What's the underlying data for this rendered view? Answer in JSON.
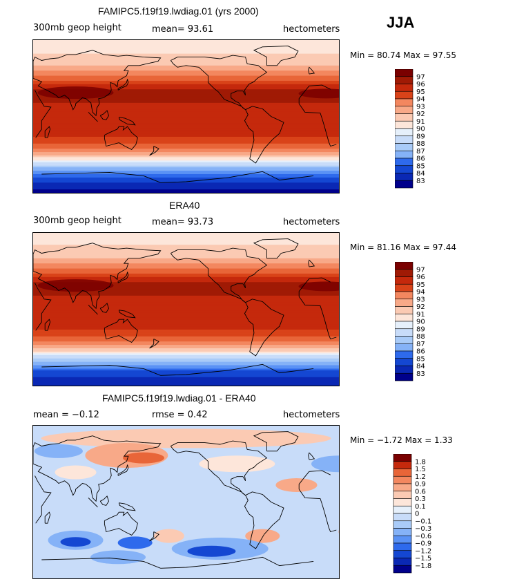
{
  "season": "JJA",
  "colors": {
    "warm_scale": [
      "#00008b",
      "#0a28b4",
      "#1447d2",
      "#2e6aec",
      "#5a92f5",
      "#85b2f7",
      "#a9cbf8",
      "#c8dcf9",
      "#e6f0fb",
      "#fde6da",
      "#fbcab3",
      "#f8a988",
      "#f3875f",
      "#e86538",
      "#d94319",
      "#c5290c",
      "#a01a05",
      "#7a0000"
    ],
    "diff_scale": [
      "#00008b",
      "#0a28b4",
      "#1447d2",
      "#2e6aec",
      "#5a92f5",
      "#85b2f7",
      "#a9cbf8",
      "#c8dcf9",
      "#e6f0fb",
      "#fde6da",
      "#fbcab3",
      "#f8a988",
      "#f3875f",
      "#e86538",
      "#c5290c",
      "#7a0000"
    ],
    "coast": "#000000"
  },
  "panels": [
    {
      "title": "FAMIPC5.f19f19.lwdiag.01 (yrs 2000)",
      "left_label": "300mb  geop height",
      "center_label": "mean=   93.61",
      "right_label": "hectometers",
      "minmax": "Min =   80.74  Max =   97.55"
    },
    {
      "title": "ERA40",
      "left_label": "300mb  geop height",
      "center_label": "mean=   93.73",
      "right_label": "hectometers",
      "minmax": "Min =   81.16  Max =   97.44"
    },
    {
      "title": "FAMIPC5.f19f19.lwdiag.01 - ERA40",
      "left_label": "mean =   −0.12",
      "center_label": "rmse =    0.42",
      "right_label": "hectometers",
      "minmax": "Min =   −1.72  Max =     1.33"
    }
  ],
  "chart_data": [
    {
      "type": "heatmap",
      "title": "FAMIPC5.f19f19.lwdiag.01 (yrs 2000)",
      "variable": "300mb geop height",
      "units": "hectometers",
      "mean": 93.61,
      "min": 80.74,
      "max": 97.55,
      "colorbar_levels": [
        "97",
        "96",
        "95",
        "94",
        "93",
        "92",
        "91",
        "90",
        "89",
        "88",
        "87",
        "86",
        "85",
        "84",
        "83"
      ],
      "zonal_profile": {
        "lat": [
          90,
          75,
          60,
          45,
          30,
          15,
          0,
          -15,
          -30,
          -45,
          -60,
          -75,
          -90
        ],
        "value": [
          90.2,
          90.8,
          91.7,
          94.0,
          96.6,
          96.2,
          96.0,
          95.9,
          95.0,
          92.0,
          87.5,
          84.0,
          82.5
        ]
      }
    },
    {
      "type": "heatmap",
      "title": "ERA40",
      "variable": "300mb geop height",
      "units": "hectometers",
      "mean": 93.73,
      "min": 81.16,
      "max": 97.44,
      "colorbar_levels": [
        "97",
        "96",
        "95",
        "94",
        "93",
        "92",
        "91",
        "90",
        "89",
        "88",
        "87",
        "86",
        "85",
        "84",
        "83"
      ],
      "zonal_profile": {
        "lat": [
          90,
          75,
          60,
          45,
          30,
          15,
          0,
          -15,
          -30,
          -45,
          -60,
          -75,
          -90
        ],
        "value": [
          90.3,
          90.9,
          91.8,
          94.1,
          96.6,
          96.2,
          96.0,
          95.9,
          95.0,
          92.1,
          87.6,
          84.2,
          82.8
        ]
      }
    },
    {
      "type": "heatmap",
      "title": "FAMIPC5.f19f19.lwdiag.01 - ERA40",
      "units": "hectometers",
      "mean": -0.12,
      "rmse": 0.42,
      "min": -1.72,
      "max": 1.33,
      "colorbar_levels": [
        "1.8",
        "1.5",
        "1.2",
        "0.9",
        "0.6",
        "0.3",
        "0.1",
        "0",
        "−0.1",
        "−0.3",
        "−0.6",
        "−0.9",
        "−1.2",
        "−1.5",
        "−1.8"
      ]
    }
  ]
}
